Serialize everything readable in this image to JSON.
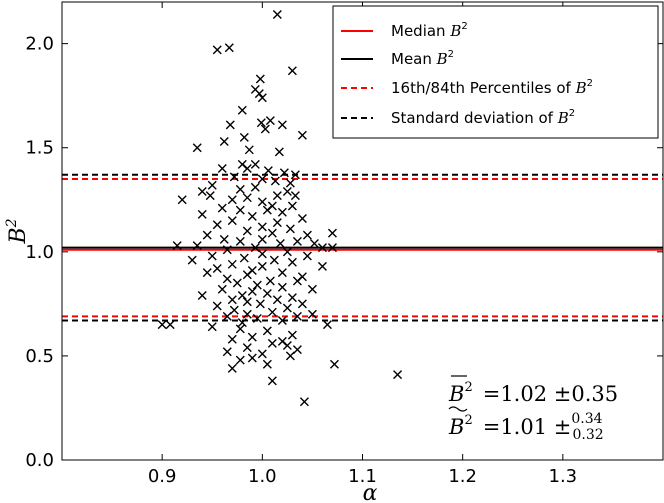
{
  "chart_data": {
    "type": "scatter",
    "title": "",
    "xlabel": "α",
    "ylabel": "B",
    "ylabel_sup": "2",
    "xlim": [
      0.8,
      1.4
    ],
    "ylim": [
      0.0,
      2.2
    ],
    "xticks": [
      0.9,
      1.0,
      1.1,
      1.2,
      1.3
    ],
    "xtick_labels": [
      "0.9",
      "1.0",
      "1.1",
      "1.2",
      "1.3"
    ],
    "yticks": [
      0.0,
      0.5,
      1.0,
      1.5,
      2.0
    ],
    "ytick_labels": [
      "0.0",
      "0.5",
      "1.0",
      "1.5",
      "2.0"
    ],
    "grid": false,
    "legend_position": "top-right",
    "marker": "x",
    "points": [
      [
        1.015,
        2.14
      ],
      [
        0.955,
        1.97
      ],
      [
        0.967,
        1.98
      ],
      [
        1.03,
        1.87
      ],
      [
        0.998,
        1.83
      ],
      [
        0.997,
        1.76
      ],
      [
        1.0,
        1.74
      ],
      [
        0.993,
        1.78
      ],
      [
        0.98,
        1.68
      ],
      [
        0.968,
        1.61
      ],
      [
        0.999,
        1.62
      ],
      [
        1.02,
        1.61
      ],
      [
        1.003,
        1.59
      ],
      [
        1.008,
        1.63
      ],
      [
        0.982,
        1.55
      ],
      [
        1.04,
        1.56
      ],
      [
        0.962,
        1.53
      ],
      [
        0.935,
        1.5
      ],
      [
        0.987,
        1.49
      ],
      [
        1.017,
        1.48
      ],
      [
        0.993,
        1.42
      ],
      [
        0.98,
        1.42
      ],
      [
        0.96,
        1.4
      ],
      [
        0.985,
        1.4
      ],
      [
        1.006,
        1.39
      ],
      [
        1.022,
        1.38
      ],
      [
        1.033,
        1.37
      ],
      [
        0.972,
        1.36
      ],
      [
        1.0,
        1.35
      ],
      [
        1.013,
        1.34
      ],
      [
        1.028,
        1.33
      ],
      [
        0.95,
        1.32
      ],
      [
        0.94,
        1.29
      ],
      [
        0.978,
        1.3
      ],
      [
        0.993,
        1.31
      ],
      [
        1.025,
        1.29
      ],
      [
        0.948,
        1.27
      ],
      [
        1.015,
        1.27
      ],
      [
        1.033,
        1.27
      ],
      [
        0.92,
        1.25
      ],
      [
        0.97,
        1.25
      ],
      [
        0.985,
        1.26
      ],
      [
        1.0,
        1.24
      ],
      [
        1.01,
        1.22
      ],
      [
        1.03,
        1.22
      ],
      [
        0.96,
        1.21
      ],
      [
        0.978,
        1.2
      ],
      [
        1.005,
        1.2
      ],
      [
        1.02,
        1.19
      ],
      [
        0.94,
        1.18
      ],
      [
        0.99,
        1.17
      ],
      [
        1.04,
        1.16
      ],
      [
        0.97,
        1.15
      ],
      [
        1.015,
        1.14
      ],
      [
        0.955,
        1.13
      ],
      [
        1.0,
        1.12
      ],
      [
        1.028,
        1.11
      ],
      [
        0.985,
        1.1
      ],
      [
        1.01,
        1.09
      ],
      [
        1.045,
        1.08
      ],
      [
        0.945,
        1.08
      ],
      [
        1.07,
        1.09
      ],
      [
        0.962,
        1.06
      ],
      [
        1.0,
        1.06
      ],
      [
        1.035,
        1.05
      ],
      [
        0.978,
        1.05
      ],
      [
        1.018,
        1.04
      ],
      [
        1.052,
        1.04
      ],
      [
        0.935,
        1.03
      ],
      [
        1.06,
        1.02
      ],
      [
        0.915,
        1.03
      ],
      [
        0.993,
        1.02
      ],
      [
        1.07,
        1.02
      ],
      [
        0.965,
        1.01
      ],
      [
        1.025,
        1.0
      ],
      [
        1.0,
        0.99
      ],
      [
        0.95,
        0.98
      ],
      [
        1.045,
        0.98
      ],
      [
        0.982,
        0.97
      ],
      [
        1.012,
        0.96
      ],
      [
        0.93,
        0.96
      ],
      [
        1.03,
        0.95
      ],
      [
        0.97,
        0.94
      ],
      [
        1.0,
        0.93
      ],
      [
        1.06,
        0.93
      ],
      [
        0.955,
        0.92
      ],
      [
        0.99,
        0.91
      ],
      [
        1.02,
        0.9
      ],
      [
        0.985,
        0.89
      ],
      [
        0.945,
        0.9
      ],
      [
        1.04,
        0.88
      ],
      [
        0.965,
        0.87
      ],
      [
        1.008,
        0.86
      ],
      [
        1.035,
        0.86
      ],
      [
        0.975,
        0.85
      ],
      [
        0.995,
        0.84
      ],
      [
        1.02,
        0.83
      ],
      [
        0.96,
        0.82
      ],
      [
        1.05,
        0.82
      ],
      [
        0.99,
        0.81
      ],
      [
        1.005,
        0.8
      ],
      [
        0.98,
        0.79
      ],
      [
        0.94,
        0.79
      ],
      [
        1.03,
        0.78
      ],
      [
        0.97,
        0.77
      ],
      [
        1.015,
        0.77
      ],
      [
        0.985,
        0.76
      ],
      [
        0.998,
        0.75
      ],
      [
        1.04,
        0.75
      ],
      [
        0.955,
        0.74
      ],
      [
        1.025,
        0.73
      ],
      [
        0.972,
        0.72
      ],
      [
        1.01,
        0.71
      ],
      [
        0.985,
        0.7
      ],
      [
        1.05,
        0.7
      ],
      [
        0.965,
        0.69
      ],
      [
        1.035,
        0.69
      ],
      [
        0.995,
        0.68
      ],
      [
        1.02,
        0.67
      ],
      [
        0.98,
        0.66
      ],
      [
        0.9,
        0.65
      ],
      [
        0.95,
        0.64
      ],
      [
        0.978,
        0.63
      ],
      [
        1.005,
        0.62
      ],
      [
        1.065,
        0.65
      ],
      [
        0.908,
        0.65
      ],
      [
        1.03,
        0.6
      ],
      [
        0.99,
        0.59
      ],
      [
        0.97,
        0.58
      ],
      [
        1.02,
        0.57
      ],
      [
        1.01,
        0.56
      ],
      [
        1.025,
        0.55
      ],
      [
        0.985,
        0.54
      ],
      [
        1.035,
        0.53
      ],
      [
        0.965,
        0.52
      ],
      [
        1.0,
        0.51
      ],
      [
        1.028,
        0.5
      ],
      [
        0.99,
        0.49
      ],
      [
        0.978,
        0.48
      ],
      [
        1.005,
        0.46
      ],
      [
        1.072,
        0.46
      ],
      [
        0.97,
        0.44
      ],
      [
        1.01,
        0.38
      ],
      [
        1.135,
        0.41
      ],
      [
        1.042,
        0.28
      ]
    ],
    "lines": [
      {
        "name": "Median",
        "math": "B",
        "sup": "2",
        "value": 1.01,
        "color": "#ff0000",
        "dash": "solid"
      },
      {
        "name": "Mean",
        "math": "B",
        "sup": "2",
        "value": 1.02,
        "color": "#000000",
        "dash": "solid"
      },
      {
        "name": "16th/84th Percentiles of",
        "math": "B",
        "sup": "2",
        "values": [
          0.69,
          1.35
        ],
        "color": "#ff0000",
        "dash": "dashed"
      },
      {
        "name": "Standard deviation of",
        "math": "B",
        "sup": "2",
        "values": [
          0.67,
          1.37
        ],
        "color": "#000000",
        "dash": "dashed"
      }
    ],
    "annotations": [
      {
        "symbol": "B",
        "sup": "2",
        "decoration": "overline",
        "text": "=1.02 ±0.35"
      },
      {
        "symbol": "B",
        "sup": "2",
        "decoration": "tilde",
        "text": "=1.01 ±",
        "sup_value": "0.34",
        "sub_value": "0.32"
      }
    ]
  }
}
